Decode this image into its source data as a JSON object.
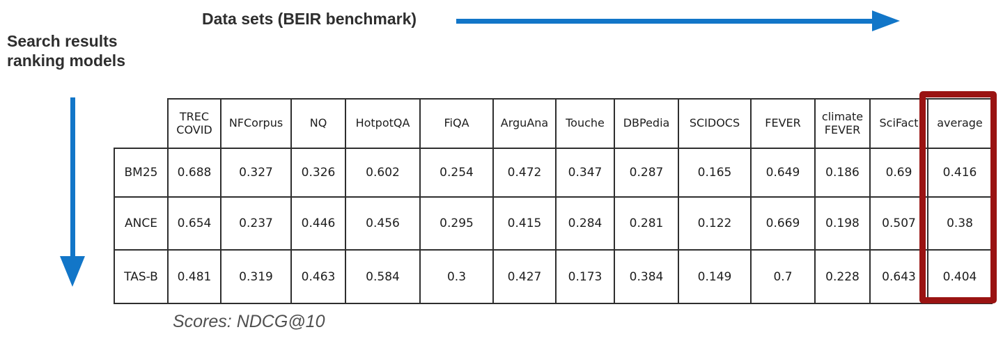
{
  "labels": {
    "datasets_axis": "Data sets (BEIR benchmark)",
    "models_axis": "Search results\nranking models",
    "footnote": "Scores: NDCG@10"
  },
  "chart_data": {
    "type": "table",
    "columns_axis_label": "Data sets (BEIR benchmark)",
    "rows_axis_label": "Search results ranking models",
    "score_metric": "NDCG@10",
    "columns": [
      "TREC COVID",
      "NFCorpus",
      "NQ",
      "HotpotQA",
      "FiQA",
      "ArguAna",
      "Touche",
      "DBPedia",
      "SCIDOCS",
      "FEVER",
      "climate FEVER",
      "SciFact",
      "average"
    ],
    "rows": [
      {
        "model": "BM25",
        "values": [
          0.688,
          0.327,
          0.326,
          0.602,
          0.254,
          0.472,
          0.347,
          0.287,
          0.165,
          0.649,
          0.186,
          0.69,
          0.416
        ],
        "cell_hatch": [
          "none",
          "none",
          "none",
          "none",
          "none",
          "none",
          "none",
          "none",
          "none",
          "none",
          "none",
          "none",
          "none"
        ]
      },
      {
        "model": "ANCE",
        "values": [
          0.654,
          0.237,
          0.446,
          0.456,
          0.295,
          0.415,
          0.284,
          0.281,
          0.122,
          0.669,
          0.198,
          0.507,
          0.38
        ],
        "cell_hatch": [
          "red",
          "red",
          "green",
          "red",
          "green",
          "red",
          "red",
          "red",
          "red",
          "green",
          "green",
          "red",
          "red"
        ]
      },
      {
        "model": "TAS-B",
        "values": [
          0.481,
          0.319,
          0.463,
          0.584,
          0.3,
          0.427,
          0.173,
          0.384,
          0.149,
          0.7,
          0.228,
          0.643,
          0.404
        ],
        "cell_hatch": [
          "red",
          "red",
          "green",
          "red",
          "green",
          "red",
          "red",
          "green",
          "red",
          "green",
          "green",
          "red",
          "red"
        ]
      }
    ],
    "highlighted_column": "average"
  },
  "colors": {
    "arrow_blue": "#1276c8",
    "box_red": "#9a1312",
    "hatch_red_stripe": "#f4beb8",
    "hatch_red_bg": "#fdf7f6",
    "hatch_green_stripe": "#c6ddc6",
    "hatch_green_bg": "#f9fcf9",
    "table_border": "#2e2e2e",
    "footnote_gray": "#4f4f4f",
    "title_black": "#2e2e2e"
  }
}
